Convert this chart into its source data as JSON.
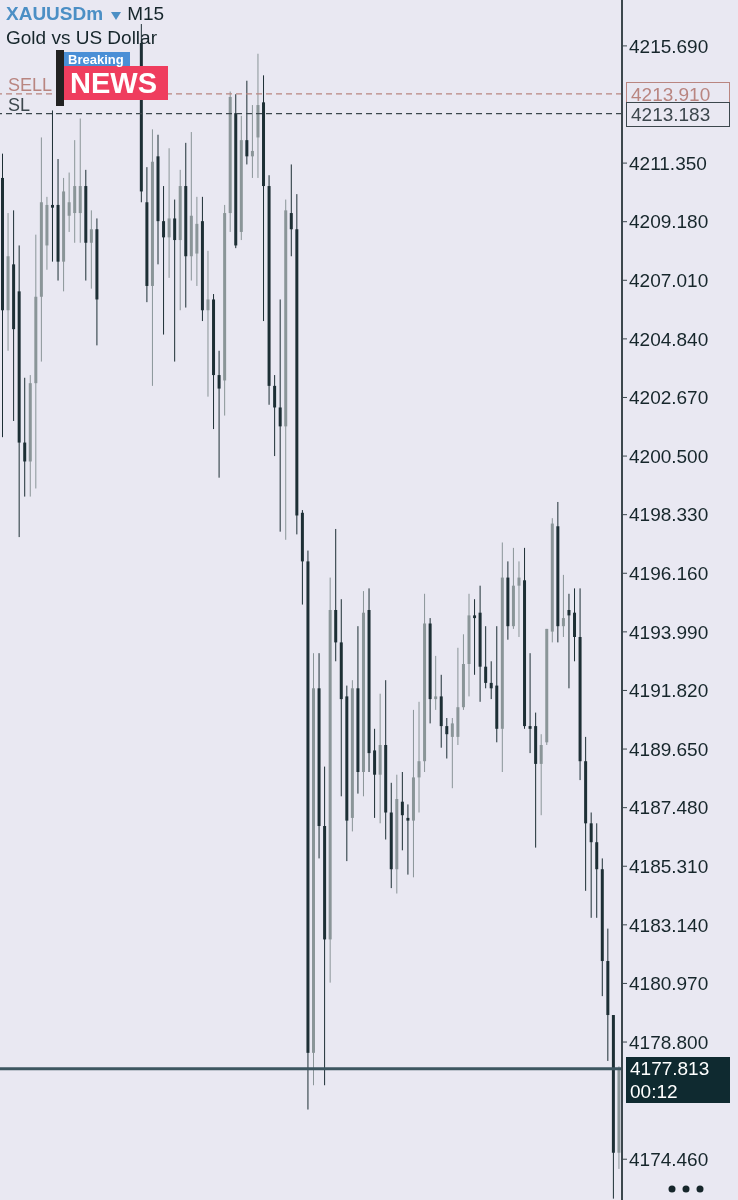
{
  "chart_data": {
    "type": "candlestick",
    "title": "XAUUSDm",
    "subtitle": "Gold vs US Dollar",
    "annotations": [
      "M15",
      "Breaking",
      "NEWS",
      "4213.910",
      "4213.183",
      "4177.813",
      "00:12"
    ],
    "categories": [
      null,
      null,
      null,
      null,
      null,
      null,
      null,
      null,
      null,
      null,
      null,
      null,
      null,
      null,
      null,
      null,
      null,
      null,
      null,
      null,
      null,
      null,
      null,
      null,
      null,
      null,
      null,
      null,
      null,
      null,
      null,
      null,
      null,
      null,
      null,
      null,
      null,
      null,
      null,
      null,
      null,
      null,
      null,
      null,
      null,
      null,
      null,
      null,
      null,
      null,
      null,
      null,
      null,
      null,
      null,
      null,
      null,
      null,
      null,
      null,
      null,
      null,
      null,
      null,
      null,
      null,
      null,
      null,
      null,
      null,
      null,
      null,
      null,
      null,
      null,
      null,
      null,
      null,
      null,
      null,
      null,
      null,
      null,
      null,
      null,
      null,
      null,
      null,
      null,
      null,
      null,
      null,
      null,
      null,
      null,
      null,
      null,
      null,
      null,
      null,
      null,
      null,
      null,
      null,
      null,
      null,
      null,
      null,
      null,
      null,
      null,
      null
    ],
    "ohlc": [
      [
        4210.8,
        4211.7,
        4201.2,
        4205.9
      ],
      [
        4205.9,
        4209.5,
        4204.4,
        4207.9
      ],
      [
        4207.6,
        4209.6,
        4201.8,
        4205.2
      ],
      [
        4206.6,
        4208.3,
        4197.5,
        4201.0
      ],
      [
        4201.0,
        4203.4,
        4199.0,
        4200.3
      ],
      [
        4200.3,
        4203.5,
        4199.0,
        4203.2
      ],
      [
        4203.2,
        4208.7,
        4199.3,
        4206.4
      ],
      [
        4206.4,
        4212.3,
        4204.0,
        4209.9
      ],
      [
        4208.3,
        4210.1,
        4207.4,
        4209.8
      ],
      [
        4209.8,
        4213.3,
        4207.7,
        4209.7
      ],
      [
        4209.8,
        4211.5,
        4207.0,
        4207.7
      ],
      [
        4207.7,
        4210.8,
        4206.6,
        4210.3
      ],
      [
        4209.4,
        4211.0,
        4208.8,
        4209.9
      ],
      [
        4209.5,
        4212.2,
        4208.4,
        4210.5
      ],
      [
        4209.5,
        4213.0,
        4208.4,
        4210.5
      ],
      [
        4210.5,
        4211.1,
        4207.0,
        4208.4
      ],
      [
        4208.4,
        4209.6,
        4206.7,
        4208.9
      ],
      [
        4208.9,
        4209.3,
        4204.6,
        4206.3
      ],
      null,
      null,
      null,
      null,
      null,
      null,
      null,
      [
        4215.8,
        4216.5,
        4209.9,
        4210.3
      ],
      [
        4209.9,
        4211.2,
        4206.2,
        4206.8
      ],
      [
        4206.8,
        4212.6,
        4203.1,
        4211.4
      ],
      [
        4211.6,
        4212.4,
        4207.6,
        4209.2
      ],
      [
        4209.2,
        4210.5,
        4205.0,
        4208.6
      ],
      [
        4208.6,
        4211.9,
        4207.1,
        4209.3
      ],
      [
        4209.3,
        4210.0,
        4204.0,
        4208.5
      ],
      [
        4208.5,
        4211.1,
        4205.9,
        4210.5
      ],
      [
        4210.5,
        4212.1,
        4206.0,
        4207.9
      ],
      [
        4207.9,
        4212.5,
        4207.0,
        4209.4
      ],
      [
        4208.0,
        4210.1,
        4206.8,
        4209.1
      ],
      [
        4209.2,
        4210.1,
        4205.5,
        4205.9
      ],
      [
        4205.9,
        4208.1,
        4202.7,
        4206.3
      ],
      [
        4206.3,
        4206.5,
        4201.5,
        4203.5
      ],
      [
        4203.5,
        4204.4,
        4199.7,
        4203.0
      ],
      [
        4203.3,
        4209.8,
        4202.0,
        4209.5
      ],
      [
        4209.5,
        4214.0,
        4208.8,
        4213.8
      ],
      [
        4213.2,
        4213.9,
        4208.2,
        4208.3
      ],
      [
        4208.8,
        4213.1,
        4208.5,
        4212.2
      ],
      [
        4212.2,
        4214.4,
        4211.3,
        4211.6
      ],
      [
        4211.6,
        4213.5,
        4210.8,
        4211.8
      ],
      [
        4212.3,
        4215.4,
        4210.8,
        4213.5
      ],
      [
        4213.6,
        4214.6,
        4205.5,
        4210.5
      ],
      [
        4210.5,
        4210.9,
        4202.4,
        4203.1
      ],
      [
        4203.1,
        4203.5,
        4200.5,
        4202.3
      ],
      [
        4202.3,
        4206.3,
        4197.7,
        4201.6
      ],
      [
        4201.6,
        4210.0,
        4197.4,
        4209.6
      ],
      [
        4209.5,
        4211.3,
        4207.9,
        4208.9
      ],
      [
        4208.9,
        4210.2,
        4197.6,
        4198.3
      ],
      [
        4198.4,
        4198.5,
        4195.0,
        4196.6
      ],
      [
        4196.6,
        4197.0,
        4176.3,
        4178.4
      ],
      [
        4178.4,
        4193.2,
        4177.2,
        4191.9
      ],
      [
        4191.9,
        4193.2,
        4185.6,
        4186.8
      ],
      [
        4186.8,
        4189.0,
        4177.2,
        4182.6
      ],
      [
        4182.6,
        4196.0,
        4181.0,
        4194.8
      ],
      [
        4194.8,
        4197.8,
        4192.9,
        4193.6
      ],
      [
        4193.6,
        4195.2,
        4187.9,
        4191.5
      ],
      [
        4191.6,
        4192.0,
        4185.5,
        4187.0
      ],
      [
        4187.1,
        4192.2,
        4186.6,
        4191.9
      ],
      [
        4191.9,
        4194.2,
        4188.0,
        4188.8
      ],
      [
        4188.8,
        4195.5,
        4187.9,
        4194.7
      ],
      [
        4194.8,
        4195.6,
        4188.8,
        4189.5
      ],
      [
        4189.6,
        4190.4,
        4187.1,
        4188.7
      ],
      [
        4188.7,
        4191.7,
        4186.9,
        4189.8
      ],
      [
        4189.8,
        4192.2,
        4186.3,
        4187.3
      ],
      [
        4187.3,
        4188.4,
        4184.5,
        4185.2
      ],
      [
        4185.2,
        4188.7,
        4184.3,
        4187.8
      ],
      [
        4187.7,
        4188.8,
        4185.9,
        4187.2
      ],
      [
        4187.1,
        4187.6,
        4185.0,
        4187.0
      ],
      [
        4187.0,
        4191.1,
        4184.9,
        4188.6
      ],
      [
        4188.6,
        4191.4,
        4187.3,
        4189.2
      ],
      [
        4189.2,
        4195.4,
        4188.8,
        4194.3
      ],
      [
        4194.3,
        4194.5,
        4190.6,
        4191.5
      ],
      [
        4191.5,
        4193.1,
        4191.1,
        4191.6
      ],
      [
        4191.6,
        4192.4,
        4189.7,
        4190.5
      ],
      [
        4190.5,
        4190.8,
        4189.3,
        4190.2
      ],
      [
        4190.1,
        4190.8,
        4188.2,
        4190.6
      ],
      [
        4190.1,
        4193.4,
        4189.8,
        4191.2
      ],
      [
        4191.2,
        4193.9,
        4191.1,
        4192.8
      ],
      [
        4192.8,
        4195.4,
        4191.6,
        4194.6
      ],
      [
        4194.6,
        4195.2,
        4192.4,
        4194.5
      ],
      [
        4194.7,
        4195.7,
        4191.4,
        4192.7
      ],
      [
        4192.7,
        4194.2,
        4191.9,
        4192.1
      ],
      [
        4192.1,
        4192.9,
        4191.5,
        4191.9
      ],
      [
        4192.0,
        4194.2,
        4189.9,
        4190.4
      ],
      [
        4190.4,
        4197.3,
        4188.8,
        4196.0
      ],
      [
        4196.0,
        4196.6,
        4193.7,
        4194.2
      ],
      [
        4194.2,
        4197.1,
        4194.1,
        4195.7
      ],
      [
        4195.7,
        4196.6,
        4193.8,
        4196.0
      ],
      [
        4195.9,
        4197.1,
        4190.4,
        4190.5
      ],
      [
        4190.5,
        4193.2,
        4189.5,
        4190.4
      ],
      [
        4190.5,
        4191.0,
        4186.0,
        4189.1
      ],
      [
        4189.1,
        4190.2,
        4187.2,
        4189.8
      ],
      [
        4189.9,
        4194.1,
        4189.8,
        4194.1
      ],
      [
        4194.0,
        4198.2,
        4193.6,
        4198.0
      ],
      [
        4197.9,
        4198.8,
        4193.6,
        4194.2
      ],
      [
        4194.2,
        4196.1,
        4193.8,
        4194.5
      ],
      [
        4194.8,
        4195.4,
        4191.9,
        4194.6
      ],
      [
        4194.7,
        4195.6,
        4192.9,
        4193.8
      ],
      [
        4193.8,
        4195.6,
        4188.5,
        4189.2
      ],
      [
        4189.2,
        4190.1,
        4184.4,
        4186.9
      ],
      [
        4186.9,
        4187.3,
        4183.4,
        4186.2
      ],
      [
        4186.2,
        4186.9,
        4183.4,
        4185.2
      ],
      [
        4185.2,
        4185.6,
        4180.5,
        4181.8
      ],
      [
        4181.8,
        4183.0,
        4178.1,
        4179.8
      ],
      [
        4179.8,
        4179.8,
        4173.0,
        4174.7
      ],
      [
        4174.7,
        4177.9,
        4174.1,
        4177.8
      ]
    ],
    "ylim": [
      4172.95,
      4217.39
    ],
    "yticks": [
      {
        "value": 4215.69,
        "label": "4215.690"
      },
      {
        "value": 4211.35,
        "label": "4211.350"
      },
      {
        "value": 4209.18,
        "label": "4209.180"
      },
      {
        "value": 4207.01,
        "label": "4207.010"
      },
      {
        "value": 4204.84,
        "label": "4204.840"
      },
      {
        "value": 4202.67,
        "label": "4202.670"
      },
      {
        "value": 4200.5,
        "label": "4200.500"
      },
      {
        "value": 4198.33,
        "label": "4198.330"
      },
      {
        "value": 4196.16,
        "label": "4196.160"
      },
      {
        "value": 4193.99,
        "label": "4193.990"
      },
      {
        "value": 4191.82,
        "label": "4191.820"
      },
      {
        "value": 4189.65,
        "label": "4189.650"
      },
      {
        "value": 4187.48,
        "label": "4187.480"
      },
      {
        "value": 4185.31,
        "label": "4185.310"
      },
      {
        "value": 4183.14,
        "label": "4183.140"
      },
      {
        "value": 4180.97,
        "label": "4180.970"
      },
      {
        "value": 4178.8,
        "label": "4178.800"
      },
      {
        "value": 4174.46,
        "label": "4174.460"
      }
    ],
    "ref_lines": [
      {
        "axis": "y",
        "value": 4213.91,
        "label": "SELL",
        "color": "#b98580",
        "line_style": "dashed"
      },
      {
        "axis": "y",
        "value": 4213.183,
        "label": "SL",
        "color": "#3c474d",
        "line_style": "dashed"
      },
      {
        "axis": "y",
        "value": 4177.813,
        "color": "#3d5660",
        "line_style": "solid"
      }
    ],
    "tick_labels": "y"
  }
}
